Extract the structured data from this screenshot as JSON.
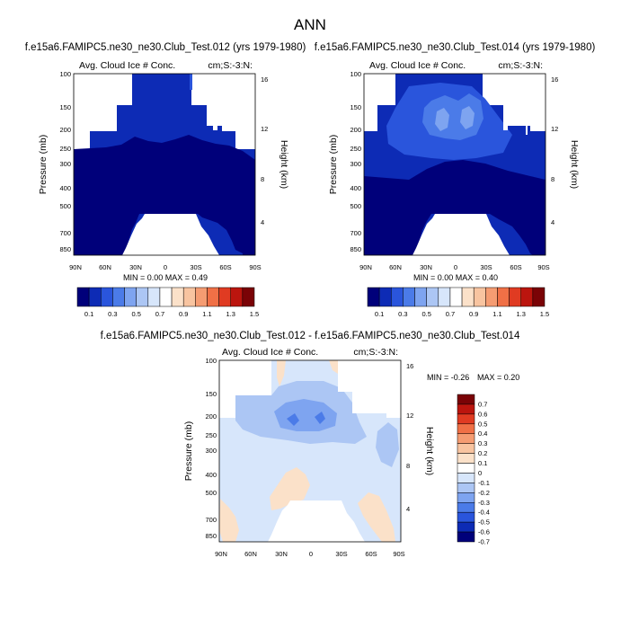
{
  "page_title": "ANN",
  "colors": {
    "navy": "#00007a",
    "blue1": "#0d2bb5",
    "blue2": "#2a55dc",
    "blue3": "#4b7be8",
    "blue4": "#7ea4f0",
    "blue5": "#acc6f4",
    "blue6": "#d7e6fb",
    "peach1": "#fbe1c9",
    "peach2": "#f8c4a0",
    "orange1": "#f59c72",
    "orange2": "#f07046",
    "red1": "#e03b22",
    "red2": "#bb150e",
    "darkred": "#7a0306"
  },
  "chart_data": [
    {
      "type": "heatmap",
      "title": "f.e15a6.FAMIPC5.ne30_ne30.Club_Test.012 (yrs 1979-1980)",
      "left_label": "Avg. Cloud Ice # Conc.",
      "right_label": "cm;S:-3:N:",
      "ylabel": "Pressure (mb)",
      "ylabel_right": "Height (km)",
      "xticks": [
        "90N",
        "60N",
        "30N",
        "0",
        "30S",
        "60S",
        "90S"
      ],
      "yticks": [
        "100",
        "150",
        "200",
        "250",
        "300",
        "400",
        "500",
        "700",
        "850"
      ],
      "height_ticks": [
        "16",
        "12",
        "8",
        "4"
      ],
      "ylim": [
        1000,
        100
      ],
      "stats": "MIN =  0.00  MAX =  0.49",
      "min": 0.0,
      "max": 0.49
    },
    {
      "type": "heatmap",
      "title": "f.e15a6.FAMIPC5.ne30_ne30.Club_Test.014 (yrs 1979-1980)",
      "left_label": "Avg. Cloud Ice # Conc.",
      "right_label": "cm;S:-3:N:",
      "ylabel": "Pressure (mb)",
      "ylabel_right": "Height (km)",
      "xticks": [
        "90N",
        "60N",
        "30N",
        "0",
        "30S",
        "60S",
        "90S"
      ],
      "yticks": [
        "100",
        "150",
        "200",
        "250",
        "300",
        "400",
        "500",
        "700",
        "850"
      ],
      "height_ticks": [
        "16",
        "12",
        "8",
        "4"
      ],
      "ylim": [
        1000,
        100
      ],
      "stats": "MIN =  0.00  MAX =  0.40",
      "min": 0.0,
      "max": 0.4
    },
    {
      "type": "heatmap",
      "title": "f.e15a6.FAMIPC5.ne30_ne30.Club_Test.012 - f.e15a6.FAMIPC5.ne30_ne30.Club_Test.014",
      "left_label": "Avg. Cloud Ice # Conc.",
      "right_label": "cm;S:-3:N:",
      "ylabel": "Pressure (mb)",
      "ylabel_right": "Height (km)",
      "xticks": [
        "90N",
        "60N",
        "30N",
        "0",
        "30S",
        "60S",
        "90S"
      ],
      "yticks": [
        "100",
        "150",
        "200",
        "250",
        "300",
        "400",
        "500",
        "700",
        "850"
      ],
      "height_ticks": [
        "16",
        "12",
        "8",
        "4"
      ],
      "ylim": [
        1000,
        100
      ],
      "stats_min": "MIN = -0.26",
      "stats_max": "MAX =  0.20",
      "min": -0.26,
      "max": 0.2
    }
  ],
  "colorbar_top": {
    "labels": [
      "0.1",
      "0.3",
      "0.5",
      "0.7",
      "0.9",
      "1.1",
      "1.3",
      "1.5"
    ]
  },
  "colorbar_diff": {
    "labels": [
      "0.7",
      "0.6",
      "0.5",
      "0.4",
      "0.3",
      "0.2",
      "0.1",
      "0",
      "-0.1",
      "-0.2",
      "-0.3",
      "-0.4",
      "-0.5",
      "-0.6",
      "-0.7"
    ]
  }
}
